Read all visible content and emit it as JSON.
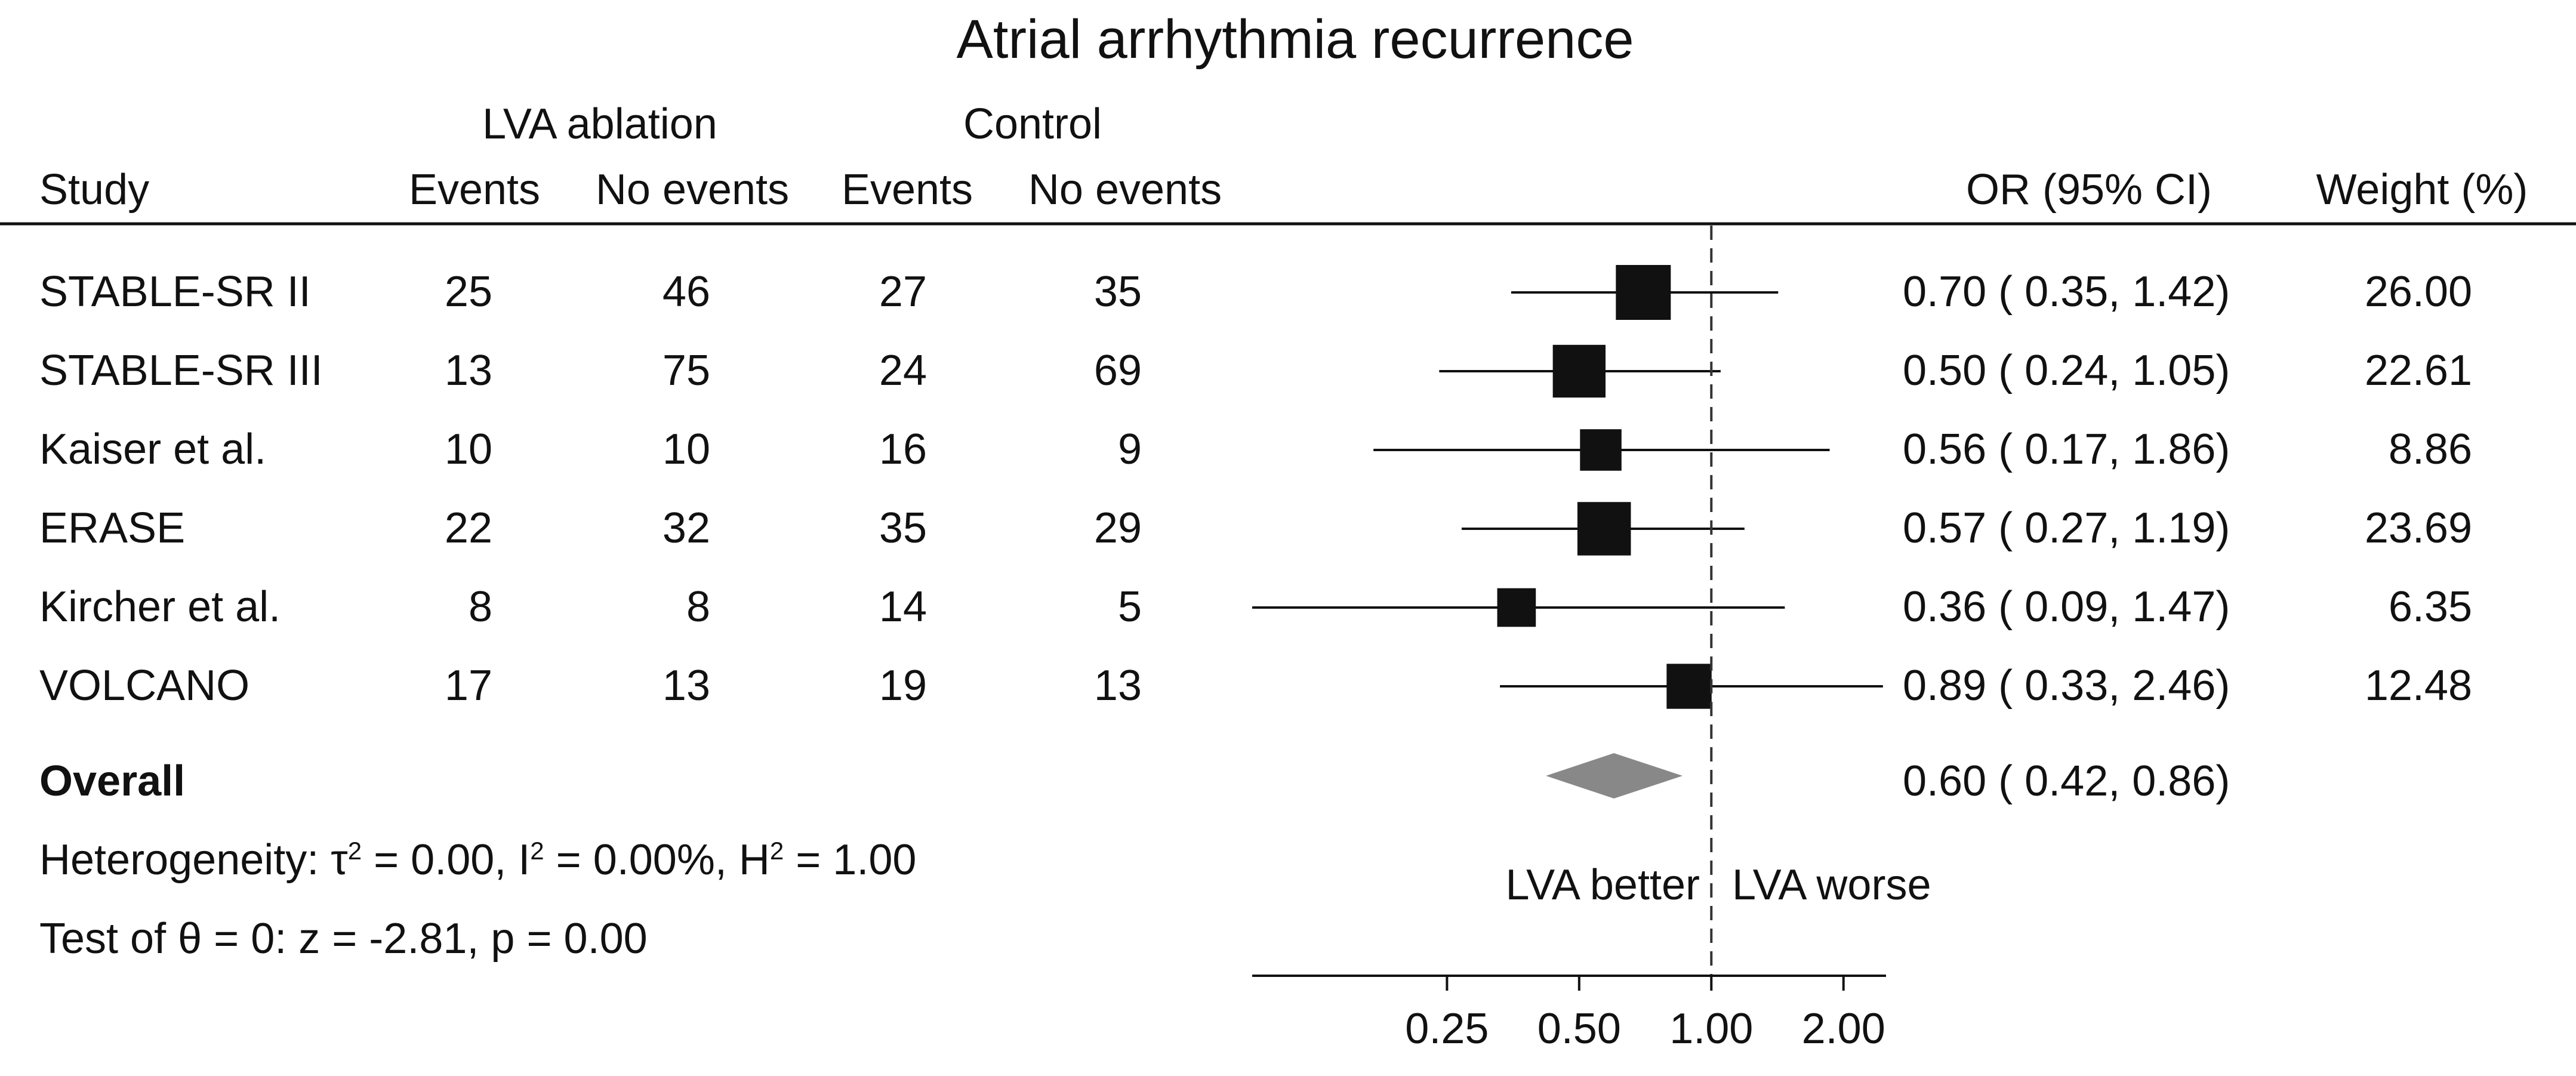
{
  "chart_data": {
    "type": "forest",
    "title": "Atrial arrhythmia recurrence",
    "group_headers": [
      "LVA ablation",
      "Control"
    ],
    "column_headers": [
      "Study",
      "Events",
      "No events",
      "Events",
      "No events",
      "OR (95% CI)",
      "Weight (%)"
    ],
    "studies": [
      {
        "name": "STABLE-SR II",
        "lva_events": "25",
        "lva_no_events": "46",
        "ctrl_events": "27",
        "ctrl_no_events": "35",
        "or": 0.7,
        "lo": 0.35,
        "hi": 1.42,
        "ci_text": "0.70 ( 0.35,  1.42)",
        "weight": 26.0,
        "weight_text": "26.00"
      },
      {
        "name": "STABLE-SR III",
        "lva_events": "13",
        "lva_no_events": "75",
        "ctrl_events": "24",
        "ctrl_no_events": "69",
        "or": 0.5,
        "lo": 0.24,
        "hi": 1.05,
        "ci_text": "0.50 ( 0.24,  1.05)",
        "weight": 22.61,
        "weight_text": "22.61"
      },
      {
        "name": "Kaiser et al.",
        "lva_events": "10",
        "lva_no_events": "10",
        "ctrl_events": "16",
        "ctrl_no_events": "9",
        "or": 0.56,
        "lo": 0.17,
        "hi": 1.86,
        "ci_text": "0.56 ( 0.17,  1.86)",
        "weight": 8.86,
        "weight_text": "8.86"
      },
      {
        "name": "ERASE",
        "lva_events": "22",
        "lva_no_events": "32",
        "ctrl_events": "35",
        "ctrl_no_events": "29",
        "or": 0.57,
        "lo": 0.27,
        "hi": 1.19,
        "ci_text": "0.57 ( 0.27,  1.19)",
        "weight": 23.69,
        "weight_text": "23.69"
      },
      {
        "name": "Kircher et al.",
        "lva_events": "8",
        "lva_no_events": "8",
        "ctrl_events": "14",
        "ctrl_no_events": "5",
        "or": 0.36,
        "lo": 0.09,
        "hi": 1.47,
        "ci_text": "0.36 ( 0.09,  1.47)",
        "weight": 6.35,
        "weight_text": "6.35"
      },
      {
        "name": "VOLCANO",
        "lva_events": "17",
        "lva_no_events": "13",
        "ctrl_events": "19",
        "ctrl_no_events": "13",
        "or": 0.89,
        "lo": 0.33,
        "hi": 2.46,
        "ci_text": "0.89 ( 0.33,  2.46)",
        "weight": 12.48,
        "weight_text": "12.48"
      }
    ],
    "overall": {
      "label": "Overall",
      "or": 0.6,
      "lo": 0.42,
      "hi": 0.86,
      "ci_text": "0.60 ( 0.42,  0.86)"
    },
    "heterogeneity": {
      "prefix": "Heterogeneity: τ",
      "tau_part": " = 0.00, I",
      "i_part": " = 0.00%, H",
      "h_part": " = 1.00",
      "superscript": "2"
    },
    "test": "Test of θ = 0: z = -2.81, p = 0.00",
    "favours_left": "LVA better",
    "favours_right": "LVA worse",
    "x_axis": {
      "scale": "log",
      "min": 0.09,
      "max": 2.5,
      "ticks": [
        0.25,
        0.5,
        1.0,
        2.0
      ],
      "tick_labels": [
        "0.25",
        "0.50",
        "1.00",
        "2.00"
      ],
      "null_line": 1.0
    }
  }
}
